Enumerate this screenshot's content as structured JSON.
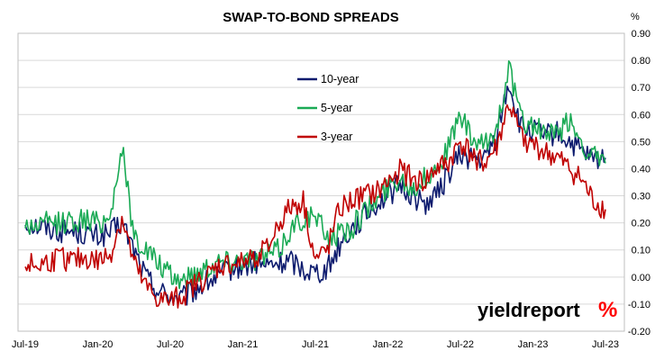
{
  "chart_data": {
    "type": "line",
    "title": "SWAP-TO-BOND SPREADS",
    "yunit": "%",
    "ylim": [
      -0.2,
      0.9
    ],
    "yticks": [
      "0.90",
      "0.80",
      "0.70",
      "0.60",
      "0.50",
      "0.40",
      "0.30",
      "0.20",
      "0.10",
      "0.00",
      "-0.10",
      "-0.20"
    ],
    "x_tick_labels": [
      "Jul-19",
      "Jan-20",
      "Jul-20",
      "Jan-21",
      "Jul-21",
      "Jan-22",
      "Jul-22",
      "Jan-23",
      "Jul-23"
    ],
    "x_tick_dates": [
      "2019-07",
      "2020-01",
      "2020-07",
      "2021-01",
      "2021-07",
      "2022-01",
      "2022-07",
      "2023-01",
      "2023-07"
    ],
    "x": [
      "2019-07",
      "2019-08",
      "2019-09",
      "2019-10",
      "2019-11",
      "2019-12",
      "2020-01",
      "2020-02",
      "2020-03",
      "2020-04",
      "2020-05",
      "2020-06",
      "2020-07",
      "2020-08",
      "2020-09",
      "2020-10",
      "2020-11",
      "2020-12",
      "2021-01",
      "2021-02",
      "2021-03",
      "2021-04",
      "2021-05",
      "2021-06",
      "2021-07",
      "2021-08",
      "2021-09",
      "2021-10",
      "2021-11",
      "2021-12",
      "2022-01",
      "2022-02",
      "2022-03",
      "2022-04",
      "2022-05",
      "2022-06",
      "2022-07",
      "2022-08",
      "2022-09",
      "2022-10",
      "2022-11",
      "2022-12",
      "2023-01",
      "2023-02",
      "2023-03",
      "2023-04",
      "2023-05",
      "2023-06",
      "2023-07"
    ],
    "series": [
      {
        "name": "10-year",
        "color": "#0d1b6e",
        "values": [
          0.2,
          0.19,
          0.18,
          0.17,
          0.17,
          0.16,
          0.15,
          0.16,
          0.2,
          0.1,
          0.0,
          -0.05,
          -0.07,
          -0.08,
          -0.05,
          -0.02,
          0.0,
          0.03,
          0.04,
          0.05,
          0.04,
          0.05,
          0.06,
          0.03,
          0.02,
          0.03,
          0.12,
          0.18,
          0.22,
          0.27,
          0.3,
          0.34,
          0.3,
          0.27,
          0.3,
          0.38,
          0.45,
          0.44,
          0.43,
          0.52,
          0.72,
          0.55,
          0.54,
          0.52,
          0.53,
          0.5,
          0.46,
          0.43,
          0.44
        ]
      },
      {
        "name": "5-year",
        "color": "#1aaa55",
        "values": [
          0.19,
          0.19,
          0.2,
          0.2,
          0.21,
          0.21,
          0.2,
          0.22,
          0.48,
          0.15,
          0.1,
          0.05,
          0.0,
          -0.01,
          0.01,
          0.04,
          0.06,
          0.06,
          0.07,
          0.07,
          0.08,
          0.1,
          0.18,
          0.22,
          0.22,
          0.15,
          0.16,
          0.18,
          0.24,
          0.28,
          0.33,
          0.37,
          0.33,
          0.36,
          0.4,
          0.48,
          0.6,
          0.5,
          0.48,
          0.55,
          0.78,
          0.58,
          0.56,
          0.53,
          0.52,
          0.58,
          0.5,
          0.44,
          0.42
        ]
      },
      {
        "name": "3-year",
        "color": "#c00000",
        "values": [
          0.05,
          0.04,
          0.06,
          0.07,
          0.06,
          0.07,
          0.06,
          0.08,
          0.22,
          0.05,
          -0.04,
          -0.08,
          -0.09,
          -0.07,
          -0.03,
          0.0,
          0.04,
          0.05,
          0.05,
          0.08,
          0.1,
          0.2,
          0.26,
          0.28,
          0.06,
          0.1,
          0.25,
          0.28,
          0.3,
          0.31,
          0.35,
          0.4,
          0.36,
          0.35,
          0.4,
          0.42,
          0.5,
          0.45,
          0.42,
          0.48,
          0.64,
          0.52,
          0.49,
          0.46,
          0.44,
          0.4,
          0.36,
          0.28,
          0.25
        ]
      }
    ],
    "legend_position": "top-center",
    "grid": true
  },
  "logo": {
    "part1": "yield",
    "part2": "report",
    "pct": "%"
  }
}
